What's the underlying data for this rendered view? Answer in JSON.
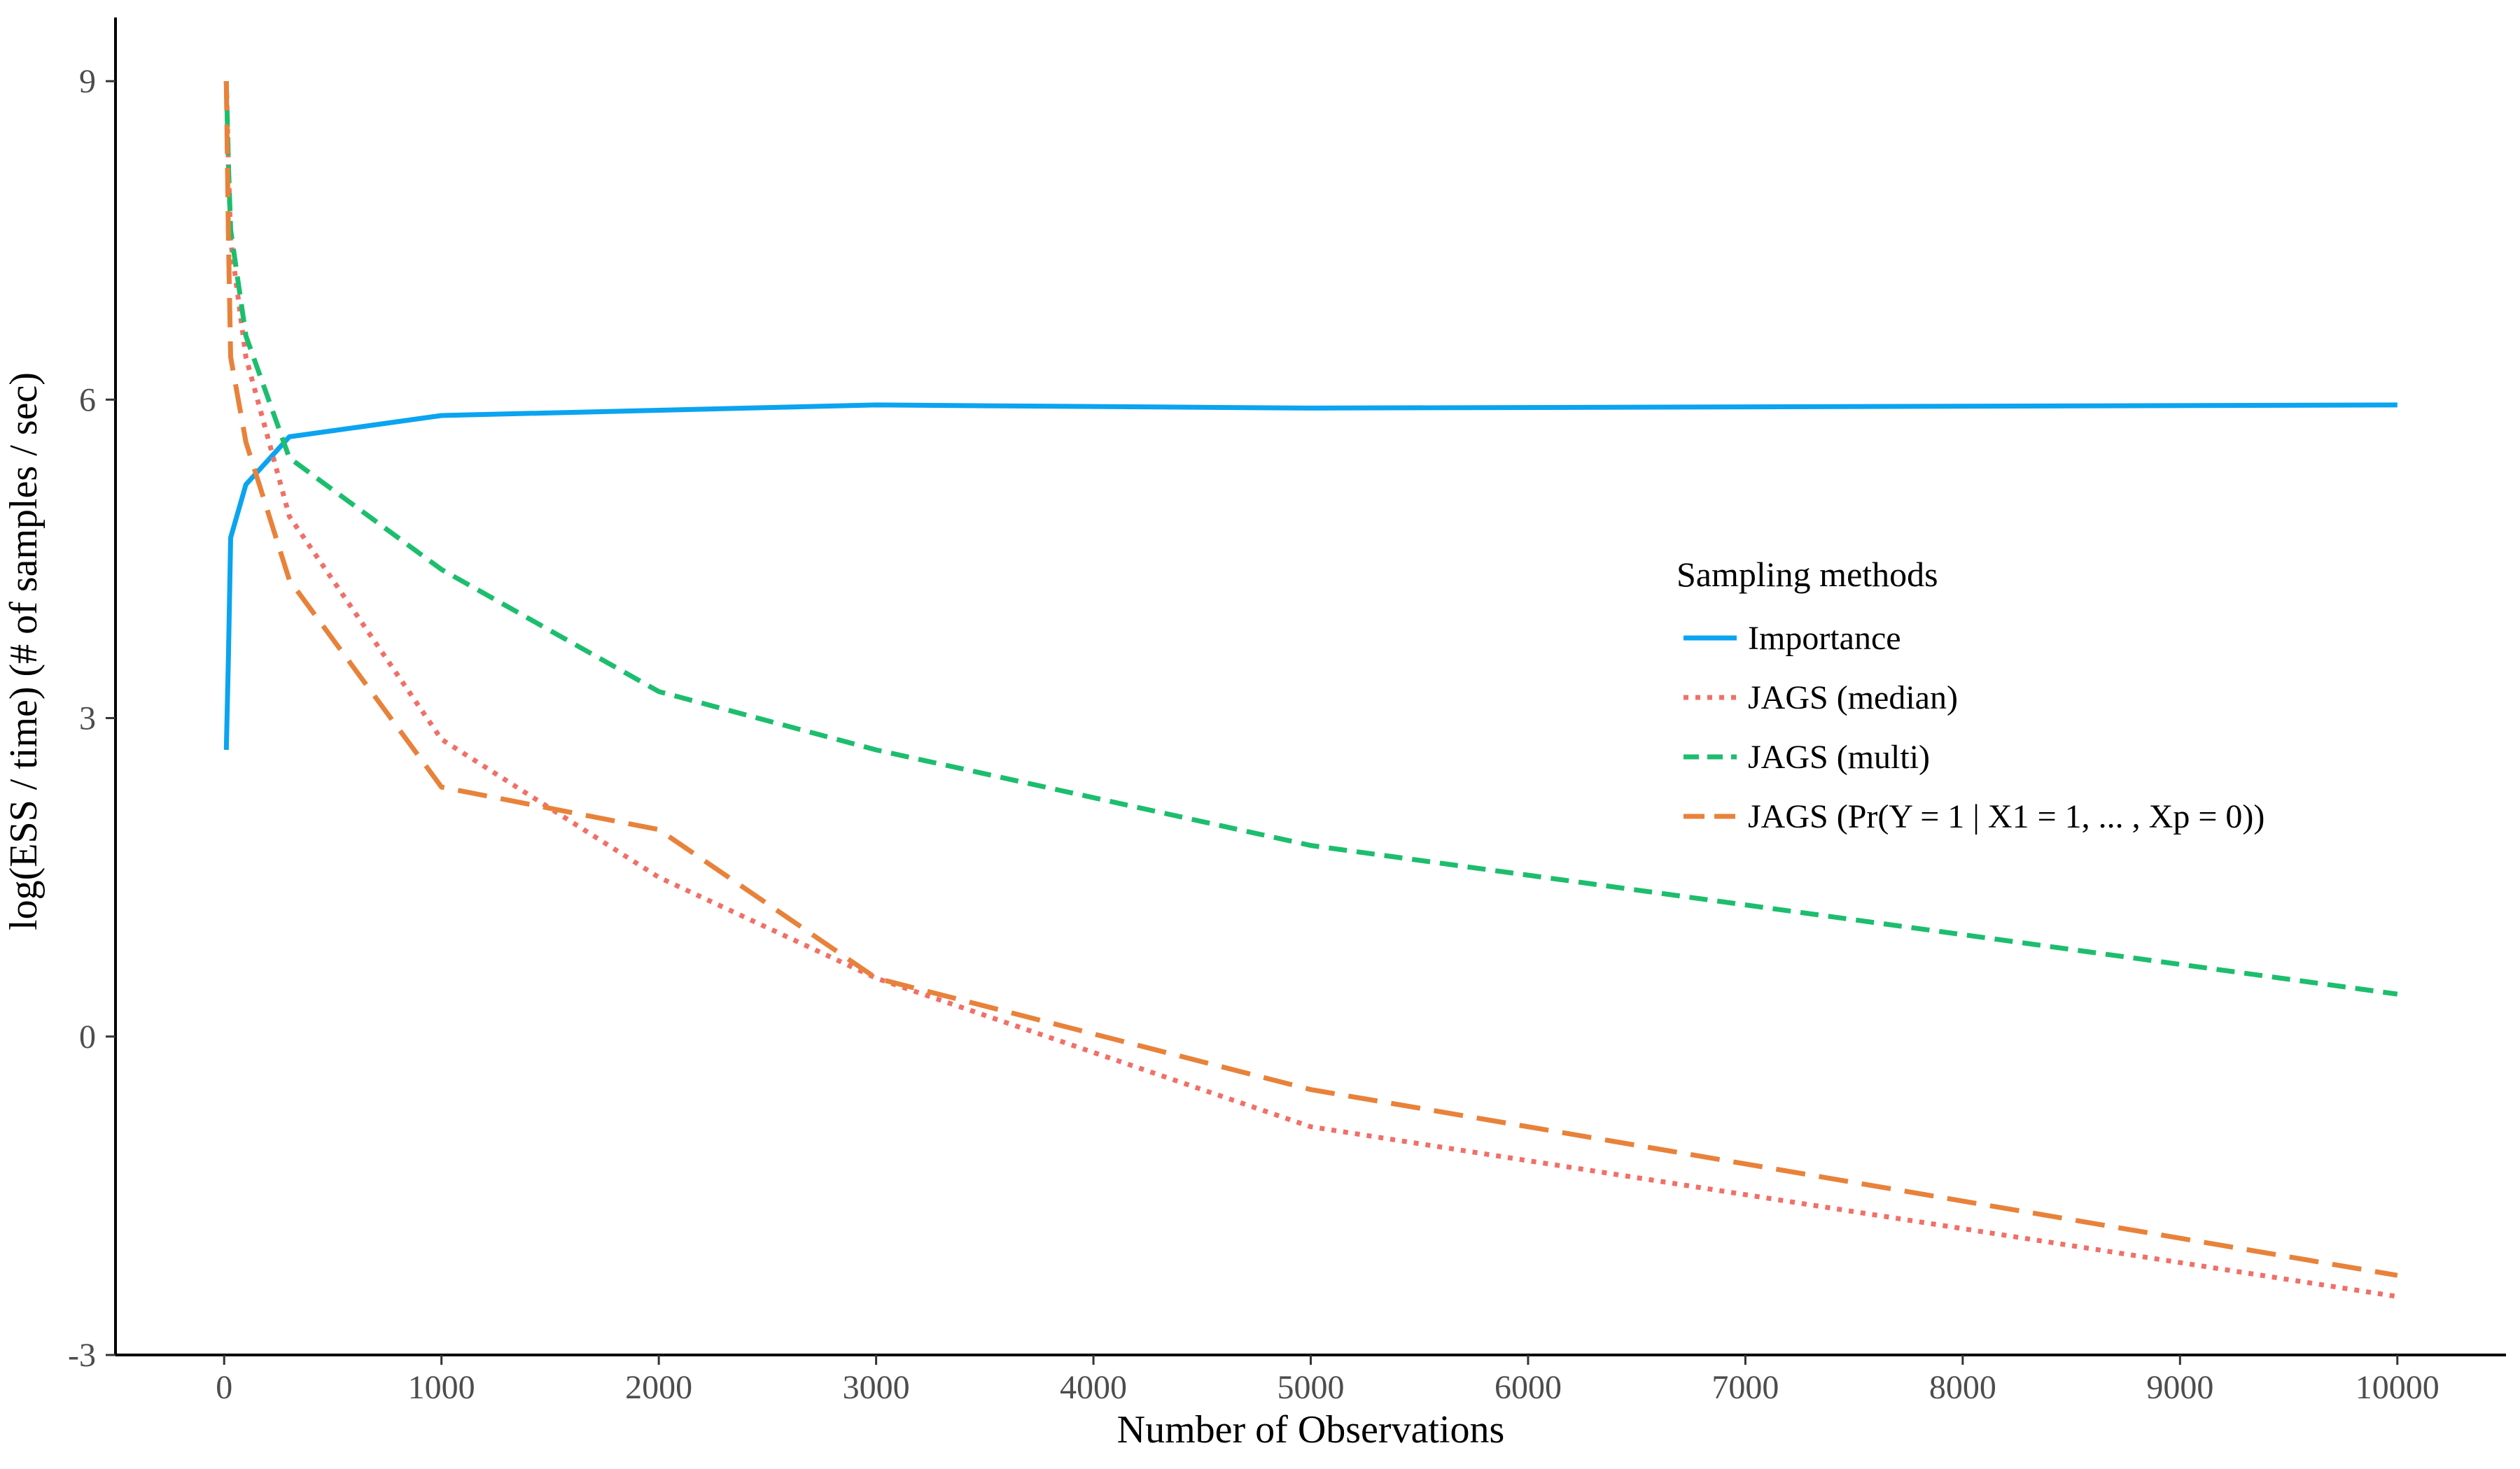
{
  "chart_data": {
    "type": "line",
    "xlabel": "Number of Observations",
    "ylabel": "log(ESS / time) (# of samples / sec)",
    "xlim": [
      -500,
      10500
    ],
    "ylim": [
      -3,
      9.6
    ],
    "xticks": [
      0,
      1000,
      2000,
      3000,
      4000,
      5000,
      6000,
      7000,
      8000,
      9000,
      10000
    ],
    "xtick_labels": [
      "0",
      "1000",
      "2000",
      "3000",
      "4000",
      "5000",
      "6000",
      "7000",
      "8000",
      "9000",
      "10000"
    ],
    "yticks": [
      -3,
      0,
      3,
      6,
      9
    ],
    "ytick_labels": [
      "-3",
      "0",
      "3",
      "6",
      "9"
    ],
    "grid": false,
    "legend": {
      "title": "Sampling methods",
      "placement": "right-center"
    },
    "series": [
      {
        "name": "Importance",
        "color": "#0aa4f0",
        "dash": "solid",
        "x": [
          10,
          20,
          30,
          100,
          300,
          1000,
          2000,
          3000,
          5000,
          10000
        ],
        "y": [
          2.7,
          3.6,
          4.7,
          5.2,
          5.65,
          5.85,
          5.9,
          5.95,
          5.92,
          5.95
        ]
      },
      {
        "name": "JAGS (median)",
        "color": "#f07068",
        "dash": "dotted",
        "x": [
          10,
          20,
          30,
          100,
          300,
          1000,
          2000,
          3000,
          5000,
          10000
        ],
        "y": [
          9.0,
          8.2,
          7.5,
          6.4,
          4.9,
          2.8,
          1.5,
          0.55,
          -0.85,
          -2.45
        ]
      },
      {
        "name": "JAGS (multi)",
        "color": "#1cbe6e",
        "dash": "dashed",
        "x": [
          10,
          20,
          30,
          100,
          300,
          1000,
          2000,
          3000,
          5000,
          10000
        ],
        "y": [
          9.0,
          8.2,
          7.6,
          6.6,
          5.45,
          4.4,
          3.25,
          2.7,
          1.8,
          0.4
        ]
      },
      {
        "name": "JAGS (Pr(Y = 1 | X1 = 1, ... , Xp = 0))",
        "color": "#e8823a",
        "dash": "longdash",
        "x": [
          10,
          20,
          30,
          100,
          300,
          1000,
          2000,
          3000,
          5000,
          10000
        ],
        "y": [
          9.0,
          7.5,
          6.4,
          5.6,
          4.3,
          2.35,
          1.95,
          0.55,
          -0.5,
          -2.25
        ]
      }
    ]
  }
}
